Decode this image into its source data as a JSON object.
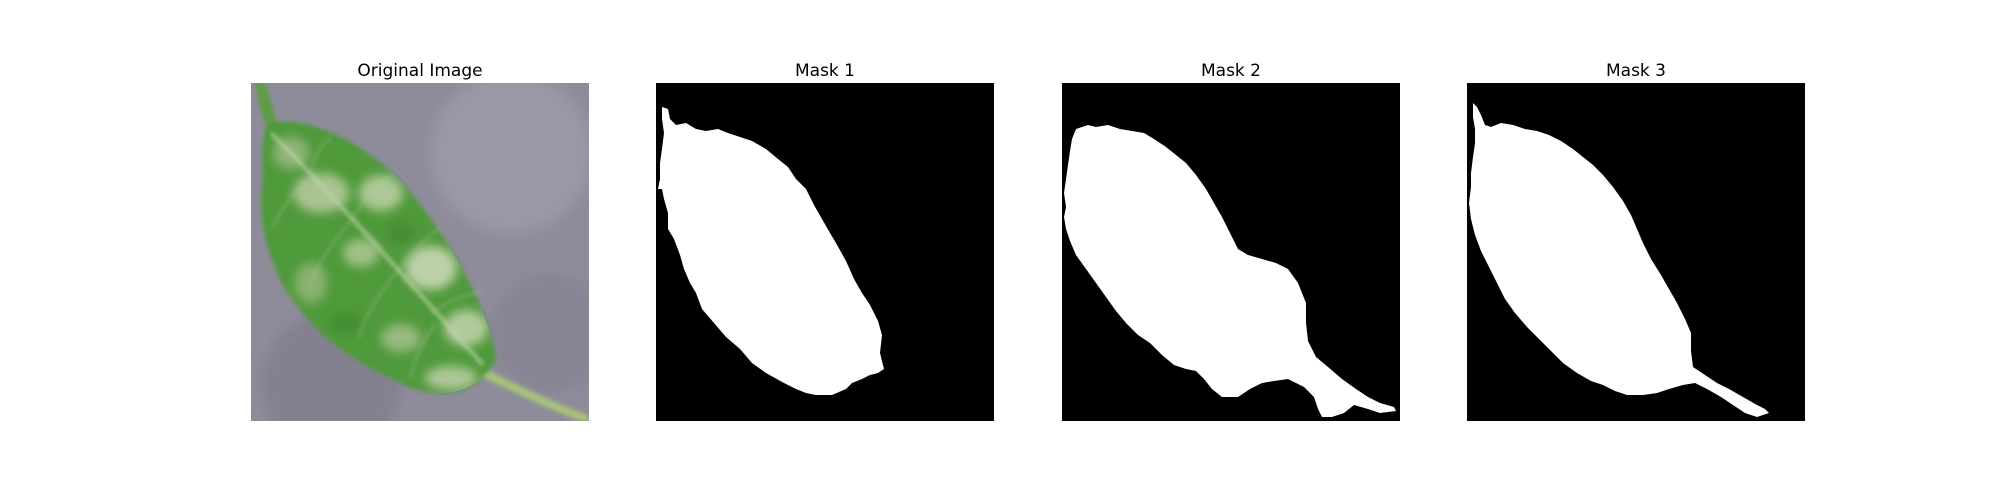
{
  "figure": {
    "panels": [
      {
        "title": "Original Image",
        "kind": "photo"
      },
      {
        "title": "Mask 1",
        "kind": "mask"
      },
      {
        "title": "Mask 2",
        "kind": "mask"
      },
      {
        "title": "Mask 3",
        "kind": "mask"
      }
    ]
  },
  "colors": {
    "background": "#ffffff",
    "mask_background": "#000000",
    "mask_foreground": "#ffffff",
    "surface": "#8e8c9a",
    "leaf": "#4f9a3a",
    "leaf_highlight": "#c4d3ad",
    "stem": "#a8c37a"
  }
}
